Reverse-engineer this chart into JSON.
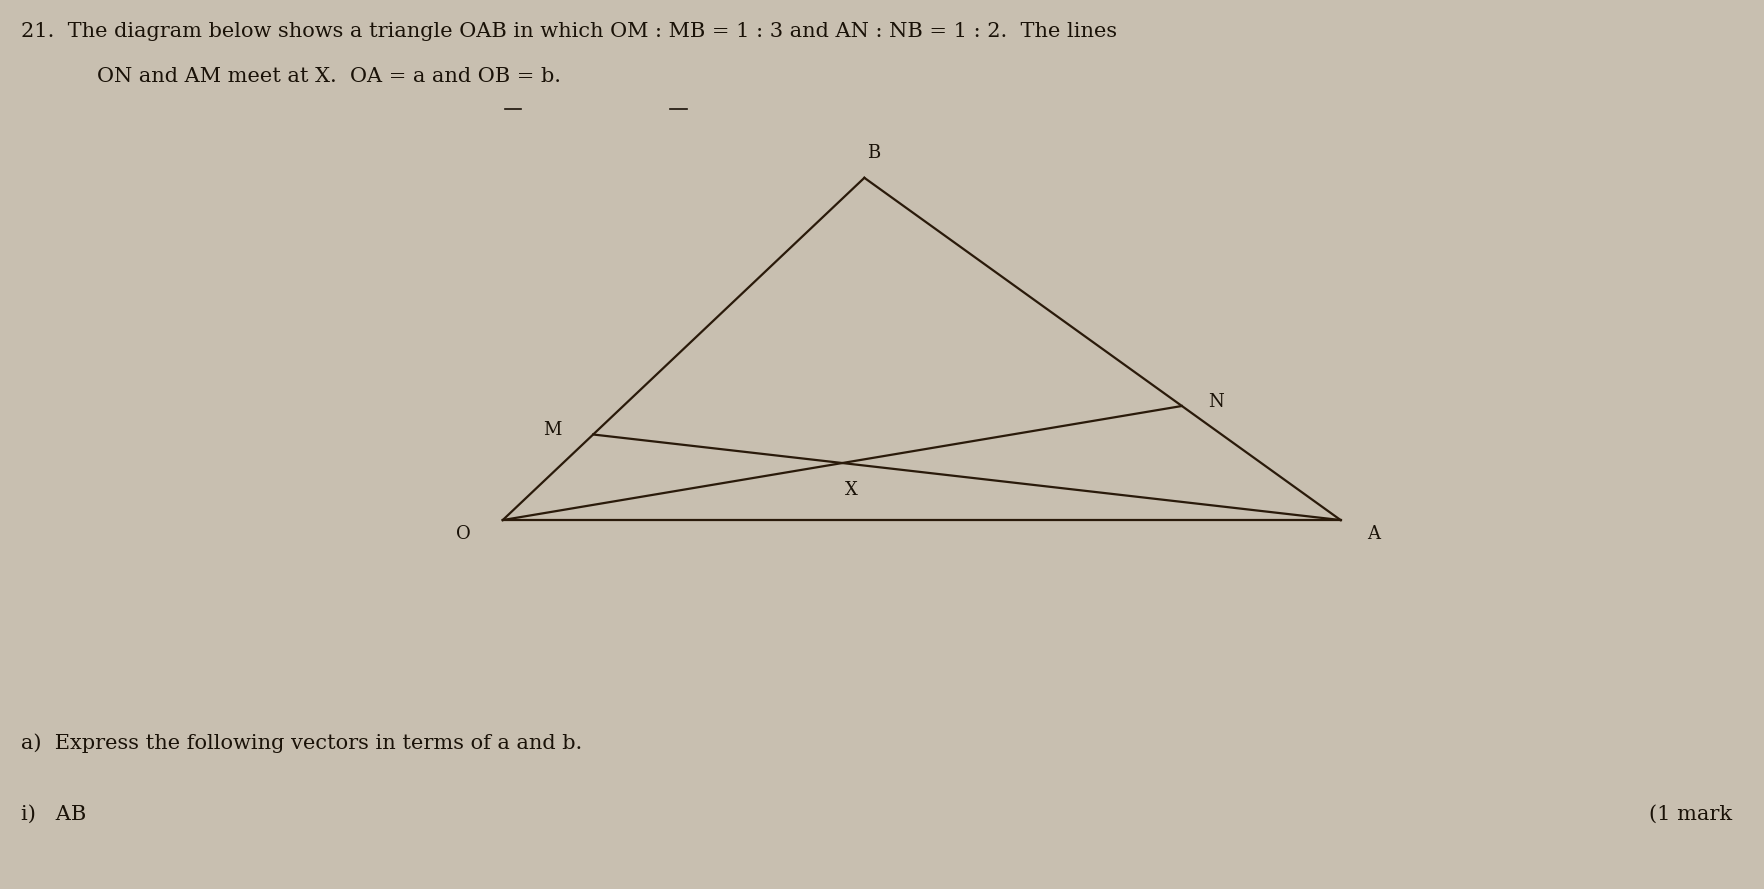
{
  "background_color": "#c8bfb0",
  "line_color": "#2a1a0a",
  "label_color": "#1a1208",
  "text_color": "#1a1208",
  "O": [
    0.285,
    0.415
  ],
  "A": [
    0.76,
    0.415
  ],
  "B": [
    0.49,
    0.8
  ],
  "M_ratio": 0.25,
  "N_ratio_from_A": 0.3333,
  "font_size_title": 15,
  "font_size_labels": 13,
  "font_size_question": 15
}
